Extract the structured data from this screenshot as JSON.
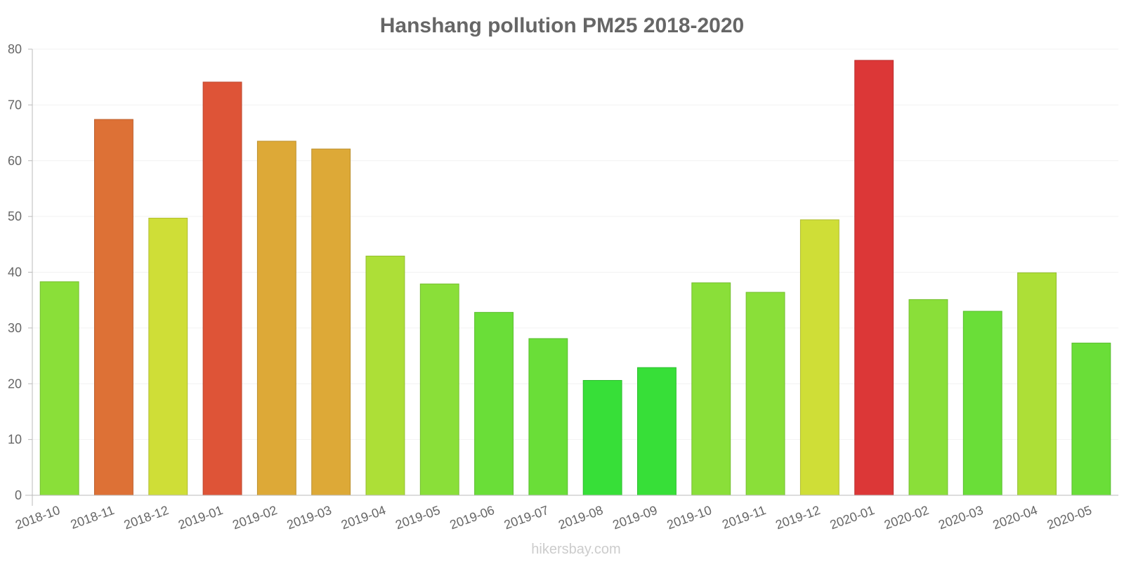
{
  "chart_data": {
    "type": "bar",
    "title": "Hanshang pollution PM25 2018-2020",
    "xlabel": "",
    "ylabel": "",
    "ylim": [
      0,
      80
    ],
    "yticks": [
      0,
      10,
      20,
      30,
      40,
      50,
      60,
      70,
      80
    ],
    "grid": true,
    "categories": [
      "2018-10",
      "2018-11",
      "2018-12",
      "2019-01",
      "2019-02",
      "2019-03",
      "2019-04",
      "2019-05",
      "2019-06",
      "2019-07",
      "2019-08",
      "2019-09",
      "2019-10",
      "2019-11",
      "2019-12",
      "2020-01",
      "2020-02",
      "2020-03",
      "2020-04",
      "2020-05"
    ],
    "values": [
      38.3,
      67.4,
      49.7,
      74.1,
      63.5,
      62.1,
      42.9,
      37.9,
      32.8,
      28.1,
      20.6,
      22.9,
      38.1,
      36.4,
      49.4,
      78.0,
      35.1,
      33.0,
      39.9,
      27.3
    ],
    "colors": [
      "#8adf39",
      "#dd7136",
      "#cfde37",
      "#de5437",
      "#dda937",
      "#dda937",
      "#addf37",
      "#8adf39",
      "#6ade38",
      "#6ade38",
      "#37df38",
      "#37df38",
      "#8adf39",
      "#8adf39",
      "#cfde37",
      "#dc3737",
      "#8adf39",
      "#6ade38",
      "#addf37",
      "#6ade38"
    ]
  },
  "watermark": "hikersbay.com"
}
